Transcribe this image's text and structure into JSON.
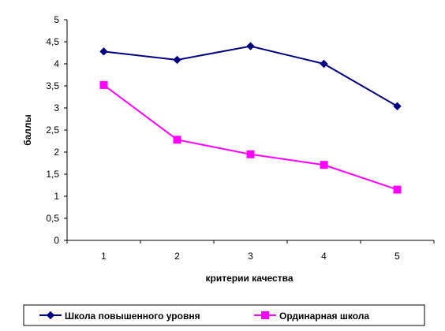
{
  "chart_data": {
    "type": "line",
    "title": "",
    "xlabel": "критерии качества",
    "ylabel": "баллы",
    "categories": [
      "1",
      "2",
      "3",
      "4",
      "5"
    ],
    "ylim": [
      0,
      5
    ],
    "yticks": [
      0,
      0.5,
      1,
      1.5,
      2,
      2.5,
      3,
      3.5,
      4,
      4.5,
      5
    ],
    "ytick_labels": [
      "0",
      "0,5",
      "1",
      "1,5",
      "2",
      "2,5",
      "3",
      "3,5",
      "4",
      "4,5",
      "5"
    ],
    "grid": false,
    "legend_position": "bottom",
    "series": [
      {
        "name": "Школа повышенного уровня",
        "values": [
          4.28,
          4.09,
          4.4,
          4.0,
          3.04
        ],
        "color": "#000080",
        "marker": "diamond"
      },
      {
        "name": "Ординарная школа",
        "values": [
          3.52,
          2.28,
          1.95,
          1.71,
          1.15
        ],
        "color": "#ff00ff",
        "marker": "square"
      }
    ]
  }
}
